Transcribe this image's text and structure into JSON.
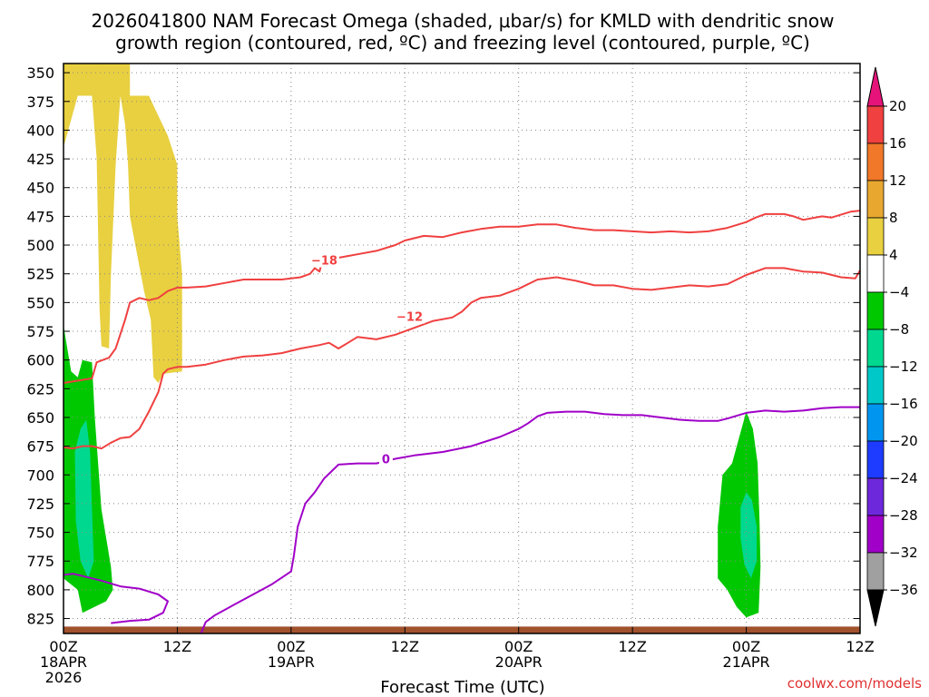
{
  "chart_data": {
    "type": "time-height cross section",
    "title_lines": [
      "2026041800 NAM Forecast Omega (shaded, μbar/s) for KMLD with dendritic snow",
      "growth region (contoured, red, ºC) and freezing level (contoured, purple, ºC)"
    ],
    "xlabel": "Forecast Time (UTC)",
    "credit": "coolwx.com/models",
    "x_range_hours": [
      0,
      84
    ],
    "y_range_hpa": [
      342,
      838
    ],
    "y_ticks": [
      350,
      375,
      400,
      425,
      450,
      475,
      500,
      525,
      550,
      575,
      600,
      625,
      650,
      675,
      700,
      725,
      750,
      775,
      800,
      825
    ],
    "x_ticks": [
      {
        "hour": 0,
        "lines": [
          "00Z",
          "18APR",
          "2026"
        ]
      },
      {
        "hour": 12,
        "lines": [
          "12Z"
        ]
      },
      {
        "hour": 24,
        "lines": [
          "00Z",
          "19APR"
        ]
      },
      {
        "hour": 36,
        "lines": [
          "12Z"
        ]
      },
      {
        "hour": 48,
        "lines": [
          "00Z",
          "20APR"
        ]
      },
      {
        "hour": 60,
        "lines": [
          "12Z"
        ]
      },
      {
        "hour": 72,
        "lines": [
          "00Z",
          "21APR"
        ]
      },
      {
        "hour": 84,
        "lines": [
          "12Z"
        ]
      }
    ],
    "colorbar": {
      "labels": [
        "20",
        "16",
        "12",
        "8",
        "4",
        "−4",
        "−8",
        "−12",
        "−16",
        "−20",
        "−24",
        "−28",
        "−32",
        "−36"
      ],
      "bins": [
        {
          "range": "16 to 20",
          "color": "#f04040"
        },
        {
          "range": "12 to 16",
          "color": "#f07828"
        },
        {
          "range": "8 to 12",
          "color": "#e8a830"
        },
        {
          "range": "4 to 8",
          "color": "#e8d040"
        },
        {
          "range": "-4 to 4",
          "color": "#ffffff"
        },
        {
          "range": "-8 to -4",
          "color": "#00c800"
        },
        {
          "range": "-12 to -8",
          "color": "#00d890"
        },
        {
          "range": "-16 to -12",
          "color": "#00c8c8"
        },
        {
          "range": "-20 to -16",
          "color": "#0096f0"
        },
        {
          "range": "-24 to -20",
          "color": "#1e3cff"
        },
        {
          "range": "-28 to -24",
          "color": "#6e28dc"
        },
        {
          "range": "-32 to -28",
          "color": "#a000c8"
        },
        {
          "range": "-36 to -32",
          "color": "#a0a0a0"
        }
      ],
      "top_arrow_color": "#e6147a",
      "bottom_arrow_color": "#000000"
    },
    "omega_areas": [
      {
        "name": "upper-yellow-left",
        "value_range": "4 to 8",
        "color": "#e8d040",
        "points": [
          [
            0,
            342
          ],
          [
            7,
            342
          ],
          [
            7,
            370
          ],
          [
            9,
            370
          ],
          [
            11,
            405
          ],
          [
            12,
            430
          ],
          [
            12,
            475
          ],
          [
            12.5,
            525
          ],
          [
            12.5,
            610
          ],
          [
            10.5,
            612
          ],
          [
            10,
            620
          ],
          [
            9.5,
            615
          ],
          [
            9.2,
            565
          ],
          [
            8.5,
            540
          ],
          [
            7,
            475
          ],
          [
            6.8,
            430
          ],
          [
            6.5,
            395
          ],
          [
            6,
            370
          ],
          [
            5.5,
            430
          ],
          [
            5,
            525
          ],
          [
            4.8,
            590
          ],
          [
            4,
            588
          ],
          [
            3.8,
            555
          ],
          [
            3.5,
            425
          ],
          [
            3,
            370
          ],
          [
            1.5,
            370
          ],
          [
            0,
            415
          ]
        ]
      },
      {
        "name": "left-green",
        "value_range": "-8 to -4",
        "color": "#00c800",
        "points": [
          [
            0,
            570
          ],
          [
            0.8,
            610
          ],
          [
            1.5,
            615
          ],
          [
            2,
            600
          ],
          [
            3,
            602
          ],
          [
            3.3,
            650
          ],
          [
            4,
            730
          ],
          [
            5,
            780
          ],
          [
            5.2,
            800
          ],
          [
            4.5,
            810
          ],
          [
            2,
            820
          ],
          [
            1.5,
            800
          ],
          [
            0,
            790
          ]
        ]
      },
      {
        "name": "left-teal",
        "value_range": "-12 to -8",
        "color": "#00d890",
        "points": [
          [
            1.2,
            680
          ],
          [
            1.8,
            660
          ],
          [
            2.4,
            652
          ],
          [
            2.8,
            680
          ],
          [
            3,
            730
          ],
          [
            3.2,
            775
          ],
          [
            2.6,
            790
          ],
          [
            1.8,
            775
          ],
          [
            1.3,
            740
          ]
        ]
      },
      {
        "name": "right-green",
        "value_range": "-8 to -4",
        "color": "#00c800",
        "points": [
          [
            69,
            745
          ],
          [
            69.5,
            700
          ],
          [
            70.5,
            690
          ],
          [
            71.5,
            660
          ],
          [
            72,
            645
          ],
          [
            72.7,
            660
          ],
          [
            73.2,
            690
          ],
          [
            73.4,
            740
          ],
          [
            73.5,
            780
          ],
          [
            73.3,
            820
          ],
          [
            72,
            824
          ],
          [
            71,
            815
          ],
          [
            70,
            800
          ],
          [
            69,
            790
          ]
        ]
      },
      {
        "name": "right-teal",
        "value_range": "-12 to -8",
        "color": "#00d890",
        "points": [
          [
            71.4,
            728
          ],
          [
            72,
            715
          ],
          [
            72.6,
            722
          ],
          [
            73.1,
            745
          ],
          [
            73.1,
            775
          ],
          [
            72.5,
            790
          ],
          [
            71.8,
            778
          ],
          [
            71.4,
            755
          ]
        ]
      }
    ],
    "contours": [
      {
        "name": "-18C isotherm",
        "value": -18,
        "color": "#f04040",
        "label": "−18",
        "label_at": [
          27.5,
          513
        ],
        "points": [
          [
            0,
            620
          ],
          [
            1.5,
            618
          ],
          [
            3,
            616
          ],
          [
            3.5,
            602
          ],
          [
            4.8,
            598
          ],
          [
            5.5,
            590
          ],
          [
            6.5,
            565
          ],
          [
            7,
            550
          ],
          [
            8,
            546
          ],
          [
            9,
            548
          ],
          [
            10,
            546
          ],
          [
            11,
            540
          ],
          [
            12,
            537
          ],
          [
            13,
            537
          ],
          [
            15,
            536
          ],
          [
            17,
            533
          ],
          [
            19,
            530
          ],
          [
            21,
            530
          ],
          [
            23,
            530
          ],
          [
            25,
            528
          ],
          [
            26,
            525
          ],
          [
            26.5,
            520
          ],
          [
            27,
            523
          ],
          [
            27.3,
            513
          ],
          [
            29,
            511
          ],
          [
            31,
            508
          ],
          [
            33,
            505
          ],
          [
            35,
            500
          ],
          [
            36,
            496
          ],
          [
            38,
            492
          ],
          [
            40,
            493
          ],
          [
            42,
            489
          ],
          [
            44,
            486
          ],
          [
            46,
            484
          ],
          [
            48,
            484
          ],
          [
            50,
            482
          ],
          [
            52,
            482
          ],
          [
            54,
            485
          ],
          [
            56,
            487
          ],
          [
            58,
            487
          ],
          [
            60,
            488
          ],
          [
            62,
            489
          ],
          [
            64,
            488
          ],
          [
            66,
            489
          ],
          [
            68,
            488
          ],
          [
            70,
            485
          ],
          [
            72,
            480
          ],
          [
            73,
            476
          ],
          [
            74,
            473
          ],
          [
            76,
            473
          ],
          [
            77,
            475
          ],
          [
            78,
            478
          ],
          [
            80,
            475
          ],
          [
            81,
            476
          ],
          [
            83,
            471
          ],
          [
            84,
            470
          ]
        ]
      },
      {
        "name": "-12C isotherm",
        "value": -12,
        "color": "#f04040",
        "label": "−12",
        "label_at": [
          36.5,
          562
        ],
        "points": [
          [
            0,
            676
          ],
          [
            1,
            677
          ],
          [
            2,
            675
          ],
          [
            3,
            675
          ],
          [
            4,
            677
          ],
          [
            5,
            672
          ],
          [
            6,
            668
          ],
          [
            7,
            667
          ],
          [
            8,
            660
          ],
          [
            9,
            645
          ],
          [
            10,
            628
          ],
          [
            10.5,
            612
          ],
          [
            11,
            608
          ],
          [
            12,
            606
          ],
          [
            13,
            606
          ],
          [
            15,
            604
          ],
          [
            17,
            600
          ],
          [
            19,
            597
          ],
          [
            21,
            596
          ],
          [
            23,
            594
          ],
          [
            25,
            590
          ],
          [
            27,
            587
          ],
          [
            28,
            585
          ],
          [
            29,
            590
          ],
          [
            30,
            585
          ],
          [
            31,
            580
          ],
          [
            33,
            582
          ],
          [
            35,
            578
          ],
          [
            37,
            572
          ],
          [
            39,
            566
          ],
          [
            41,
            563
          ],
          [
            42,
            558
          ],
          [
            43,
            550
          ],
          [
            44,
            546
          ],
          [
            46,
            544
          ],
          [
            48,
            538
          ],
          [
            50,
            530
          ],
          [
            52,
            528
          ],
          [
            54,
            531
          ],
          [
            56,
            535
          ],
          [
            58,
            535
          ],
          [
            60,
            538
          ],
          [
            62,
            539
          ],
          [
            64,
            537
          ],
          [
            66,
            535
          ],
          [
            68,
            536
          ],
          [
            70,
            534
          ],
          [
            72,
            526
          ],
          [
            74,
            520
          ],
          [
            76,
            520
          ],
          [
            78,
            523
          ],
          [
            80,
            524
          ],
          [
            82,
            528
          ],
          [
            83.5,
            529
          ],
          [
            84,
            522
          ]
        ]
      },
      {
        "name": "0C freezing level",
        "value": 0,
        "color": "#a000c8",
        "label": "0",
        "label_at": [
          34,
          686
        ],
        "points": [
          [
            14.5,
            838
          ],
          [
            15,
            828
          ],
          [
            16,
            822
          ],
          [
            18,
            813
          ],
          [
            20,
            804
          ],
          [
            22,
            795
          ],
          [
            24,
            784
          ],
          [
            24.3,
            770
          ],
          [
            24.7,
            745
          ],
          [
            25.5,
            725
          ],
          [
            26.5,
            715
          ],
          [
            27.5,
            703
          ],
          [
            29,
            691
          ],
          [
            31,
            690
          ],
          [
            33,
            690
          ],
          [
            35,
            686
          ],
          [
            37,
            683
          ],
          [
            40,
            680
          ],
          [
            43,
            675
          ],
          [
            46,
            667
          ],
          [
            48,
            660
          ],
          [
            49,
            655
          ],
          [
            50,
            649
          ],
          [
            51,
            646
          ],
          [
            53,
            645
          ],
          [
            55,
            645
          ],
          [
            57,
            647
          ],
          [
            59,
            648
          ],
          [
            61,
            648
          ],
          [
            63,
            650
          ],
          [
            65,
            652
          ],
          [
            67,
            653
          ],
          [
            69,
            653
          ],
          [
            70,
            651
          ],
          [
            72,
            646
          ],
          [
            74,
            644
          ],
          [
            76,
            645
          ],
          [
            78,
            644
          ],
          [
            80,
            642
          ],
          [
            82,
            641
          ],
          [
            84,
            641
          ]
        ]
      },
      {
        "name": "0C freezing level lower segment",
        "value": 0,
        "color": "#a000c8",
        "label": "",
        "points": [
          [
            0,
            787
          ],
          [
            1,
            786
          ],
          [
            2,
            788
          ],
          [
            4,
            792
          ],
          [
            6,
            797
          ],
          [
            8,
            799
          ],
          [
            10,
            804
          ],
          [
            11,
            810
          ],
          [
            10.5,
            820
          ],
          [
            9,
            826
          ],
          [
            7,
            827
          ],
          [
            5,
            829
          ]
        ]
      }
    ],
    "terrain": {
      "color": "#a0522d",
      "top_hpa": 832
    }
  }
}
